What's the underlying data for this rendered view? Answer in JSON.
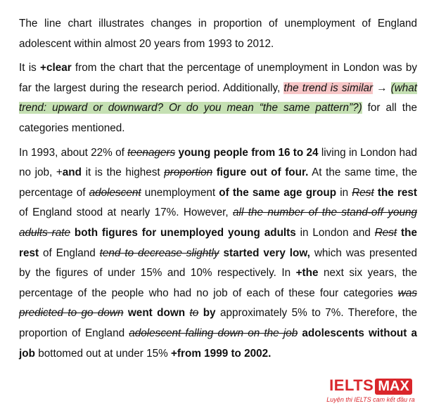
{
  "document": {
    "paragraphs": [
      {
        "runs": [
          {
            "text": "The line chart illustrates changes in proportion of unemployment of England adolescent within almost 20 years from 1993 to 2012."
          }
        ]
      },
      {
        "runs": [
          {
            "text": "It is "
          },
          {
            "text": "+clear",
            "style": "bold"
          },
          {
            "text": " from the chart that the percentage of unemployment in London was by far the largest during the research period. Additionally, "
          },
          {
            "text": "the trend is similar",
            "style": "italic-pink"
          },
          {
            "text": " → "
          },
          {
            "text": "(what trend: upward or downward? Or do you mean “the same pattern”?)",
            "style": "italic-green"
          },
          {
            "text": " for all the categories mentioned."
          }
        ]
      },
      {
        "runs": [
          {
            "text": "In 1993, about 22% of "
          },
          {
            "text": "teenagers",
            "style": "deleted"
          },
          {
            "text": " young people from 16 to 24",
            "style": "bold"
          },
          {
            "text": " living in London had no job, +"
          },
          {
            "text": "and",
            "style": "bold"
          },
          {
            "text": " it is the highest "
          },
          {
            "text": "proportion",
            "style": "deleted"
          },
          {
            "text": " figure out of four.",
            "style": "bold"
          },
          {
            "text": " At the same time, the percentage of "
          },
          {
            "text": "adolescent",
            "style": "deleted"
          },
          {
            "text": " unemployment "
          },
          {
            "text": "of the same age group",
            "style": "bold"
          },
          {
            "text": " in "
          },
          {
            "text": "Rest",
            "style": "deleted"
          },
          {
            "text": " the rest",
            "style": "bold"
          },
          {
            "text": " of England stood at nearly 17%. However, "
          },
          {
            "text": "all the number of the stand-off young adults rate",
            "style": "deleted"
          },
          {
            "text": " both figures for unemployed young adults",
            "style": "bold"
          },
          {
            "text": " in London and "
          },
          {
            "text": "Rest",
            "style": "deleted"
          },
          {
            "text": " the rest",
            "style": "bold"
          },
          {
            "text": " of England "
          },
          {
            "text": "tend to decrease slightly",
            "style": "deleted"
          },
          {
            "text": " started very low,",
            "style": "bold"
          },
          {
            "text": " which was presented by the figures of under 15% and 10% respectively. In "
          },
          {
            "text": "+the",
            "style": "bold"
          },
          {
            "text": " next six years, the percentage of the people who had no job of each of these four categories "
          },
          {
            "text": "was predicted to go down",
            "style": "deleted"
          },
          {
            "text": " went down",
            "style": "bold"
          },
          {
            "text": " "
          },
          {
            "text": "to",
            "style": "deleted"
          },
          {
            "text": " by",
            "style": "bold"
          },
          {
            "text": " approximately 5% to 7%. Therefore, the proportion of England "
          },
          {
            "text": "adolescent falling down on the job",
            "style": "deleted"
          },
          {
            "text": " adolescents without a job",
            "style": "bold"
          },
          {
            "text": " bottomed out at under 15% "
          },
          {
            "text": "+from 1999 to 2002.",
            "style": "bold"
          }
        ]
      }
    ],
    "logo": {
      "brand": "IELTS",
      "badge": "MAX",
      "tagline": "Luyện thi IELTS cam kết đầu ra"
    }
  }
}
